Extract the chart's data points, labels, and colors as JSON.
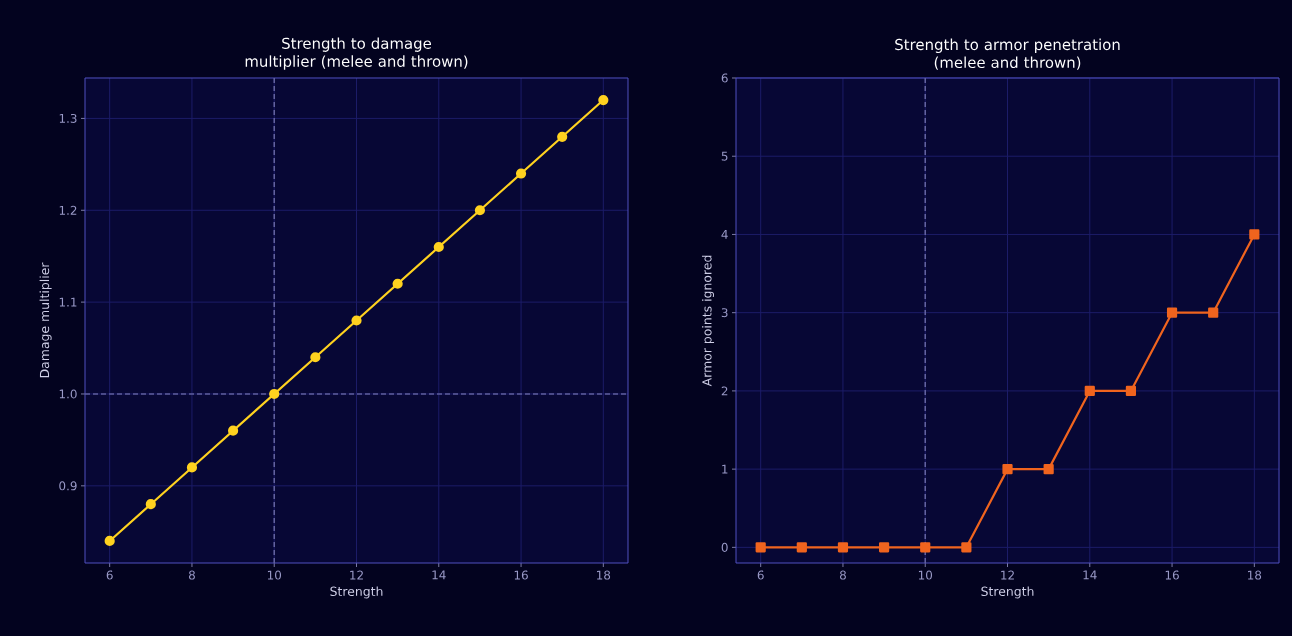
{
  "chart_data": [
    {
      "type": "line",
      "title": "Strength to damage multiplier (melee and thrown)",
      "xlabel": "Strength",
      "ylabel": "Damage multiplier",
      "x": [
        6,
        7,
        8,
        9,
        10,
        11,
        12,
        13,
        14,
        15,
        16,
        17,
        18
      ],
      "series": [
        {
          "color": "#ffd21f",
          "values": [
            0.84,
            0.88,
            0.92,
            0.96,
            1.0,
            1.04,
            1.08,
            1.12,
            1.16,
            1.2,
            1.24,
            1.28,
            1.32
          ]
        }
      ],
      "xlim": [
        5.4,
        18.6
      ],
      "ylim": [
        0.816,
        1.344
      ],
      "xticks": [
        6,
        8,
        10,
        12,
        14,
        16,
        18
      ],
      "yticks": [
        0.9,
        {
          "value": 1.0,
          "label": "1.0"
        },
        1.1,
        1.2,
        1.3
      ],
      "grid": true,
      "marker": "circle",
      "line_style": "solid",
      "ref_lines": [
        {
          "axis": "x",
          "value": 10,
          "color": "#6464a0",
          "line_style": "dashed"
        },
        {
          "axis": "y",
          "value": 1.0,
          "color": "#5e5e9c",
          "line_style": "dashed"
        }
      ]
    },
    {
      "type": "line",
      "title": "Strength to armor penetration (melee and thrown)",
      "xlabel": "Strength",
      "ylabel": "Armor points ignored",
      "x": [
        6,
        7,
        8,
        9,
        10,
        11,
        12,
        13,
        14,
        15,
        16,
        17,
        18
      ],
      "series": [
        {
          "color": "#f0641e",
          "values": [
            0,
            0,
            0,
            0,
            0,
            0,
            1,
            1,
            2,
            2,
            3,
            3,
            4
          ]
        }
      ],
      "xlim": [
        5.4,
        18.6
      ],
      "ylim": [
        -0.2,
        6
      ],
      "xticks": [
        6,
        8,
        10,
        12,
        14,
        16,
        18
      ],
      "yticks": [
        0,
        1,
        2,
        3,
        4,
        5,
        6
      ],
      "grid": true,
      "marker": "square",
      "line_style": "solid",
      "ref_lines": [
        {
          "axis": "x",
          "value": 10,
          "color": "#6464a0",
          "line_style": "dashed"
        }
      ]
    }
  ]
}
